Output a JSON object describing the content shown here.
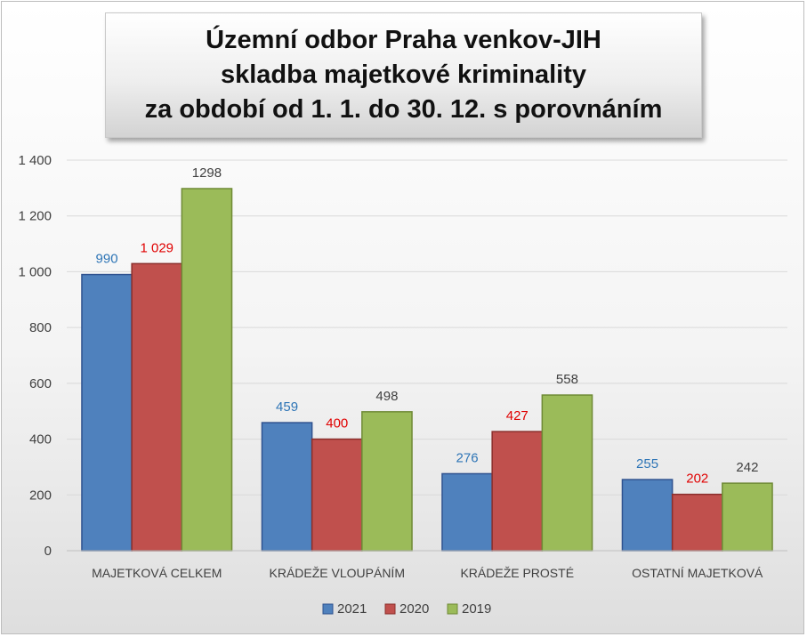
{
  "chart_data": {
    "type": "bar",
    "title": [
      "Územní odbor Praha venkov-JIH",
      "skladba majetkové kriminality",
      "za období od 1. 1. do 30. 12. s porovnáním"
    ],
    "categories": [
      "MAJETKOVÁ CELKEM",
      "KRÁDEŽE VLOUPÁNÍM",
      "KRÁDEŽE PROSTÉ",
      "OSTATNÍ MAJETKOVÁ"
    ],
    "series": [
      {
        "name": "2021",
        "values": [
          990,
          459,
          276,
          255
        ],
        "labels": [
          "990",
          "459",
          "276",
          "255"
        ],
        "color": "#4f81bd",
        "label_color": "#2e75b6"
      },
      {
        "name": "2020",
        "values": [
          1029,
          400,
          427,
          202
        ],
        "labels": [
          "1 029",
          "400",
          "427",
          "202"
        ],
        "color": "#c0504d",
        "label_color": "#e00000"
      },
      {
        "name": "2019",
        "values": [
          1298,
          498,
          558,
          242
        ],
        "labels": [
          "1298",
          "498",
          "558",
          "242"
        ],
        "color": "#9bbb59",
        "label_color": "#404040"
      }
    ],
    "ylim": [
      0,
      1400
    ],
    "yticks": [
      0,
      200,
      400,
      600,
      800,
      1000,
      1200,
      1400
    ],
    "ytick_labels": [
      "0",
      "200",
      "400",
      "600",
      "800",
      "1 000",
      "1 200",
      "1 400"
    ],
    "grid": true,
    "legend": "bottom"
  }
}
